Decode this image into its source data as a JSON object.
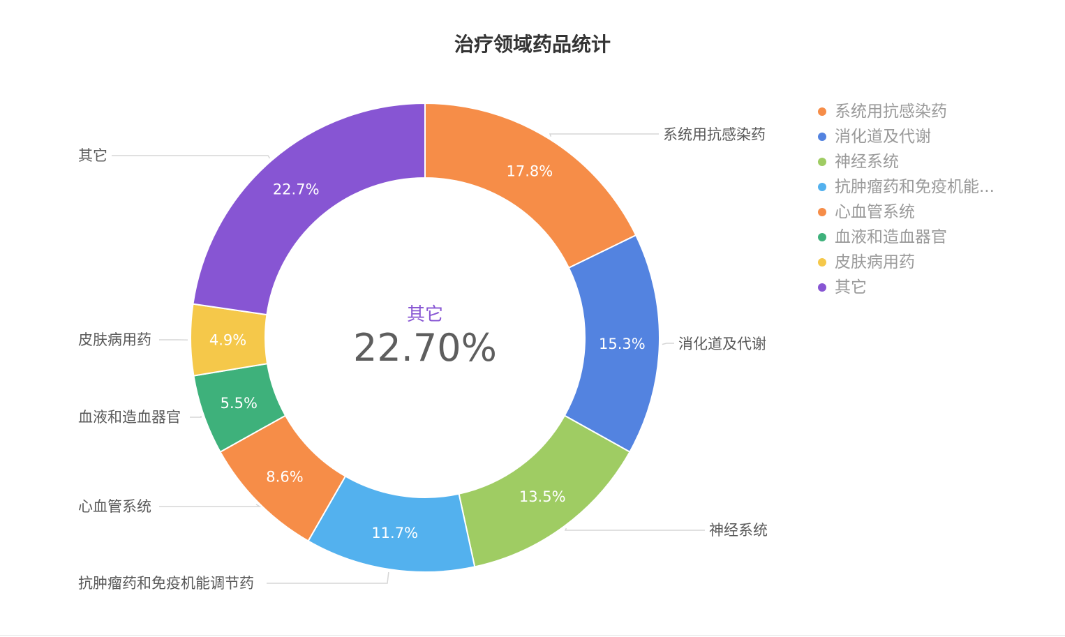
{
  "chart_data": {
    "type": "pie",
    "title": "治疗领域药品统计",
    "categories": [
      "系统用抗感染药",
      "消化道及代谢",
      "神经系统",
      "抗肿瘤药和免疫机能调节药",
      "心血管系统",
      "血液和造血器官",
      "皮肤病用药",
      "其它"
    ],
    "values": [
      17.8,
      15.3,
      13.5,
      11.7,
      8.6,
      5.5,
      4.9,
      22.7
    ],
    "value_labels": [
      "17.8%",
      "15.3%",
      "13.5%",
      "11.7%",
      "8.6%",
      "5.5%",
      "4.9%",
      "22.7%"
    ],
    "colors": [
      "#f68d48",
      "#5383e0",
      "#9fcc63",
      "#53b1ee",
      "#f68d48",
      "#3eb17b",
      "#f5c84a",
      "#8755d3"
    ],
    "legend_labels": [
      "系统用抗感染药",
      "消化道及代谢",
      "神经系统",
      "抗肿瘤药和免疫机能...",
      "心血管系统",
      "血液和造血器官",
      "皮肤病用药",
      "其它"
    ],
    "legend_position": "top-right",
    "center": {
      "label": "其它",
      "value": "22.70%",
      "color": "#8755d3"
    }
  }
}
